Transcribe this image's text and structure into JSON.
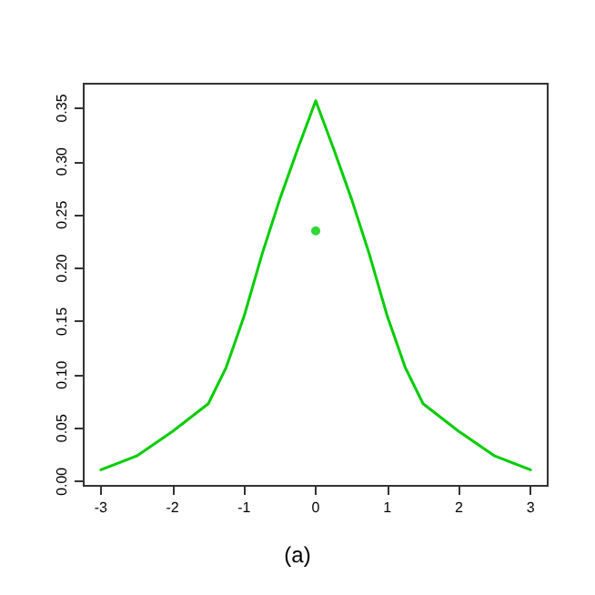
{
  "chart_data": {
    "type": "line",
    "annotations": [
      "(a)"
    ],
    "xlim": [
      -3.24,
      3.24
    ],
    "xticks": [
      -3,
      -2,
      -1,
      0,
      1,
      2,
      3
    ],
    "ylim": [
      -0.004,
      0.373
    ],
    "yticks": [
      {
        "value": 0,
        "label": "0.00"
      },
      0.05,
      {
        "value": 0.1,
        "label": "0.10"
      },
      0.15,
      {
        "value": 0.2,
        "label": "0.20"
      },
      0.25,
      {
        "value": 0.3,
        "label": "0.30"
      },
      0.35
    ],
    "grid": false,
    "marker": "none",
    "line_style": "solid",
    "series": [
      {
        "color": "#00cd00",
        "x": [
          -3,
          -2.5,
          -2,
          -1.5,
          -1.25,
          -1,
          -0.75,
          -0.5,
          -0.25,
          0,
          0.25,
          0.5,
          0.75,
          1,
          1.25,
          1.5,
          2,
          2.5,
          3
        ],
        "values": [
          0.011,
          0.024,
          0.047,
          0.073,
          0.107,
          0.155,
          0.213,
          0.265,
          0.312,
          0.357,
          0.312,
          0.265,
          0.213,
          0.155,
          0.107,
          0.073,
          0.047,
          0.024,
          0.011
        ]
      },
      {
        "type": "scatter",
        "color": "#00cd00",
        "marker": "circle",
        "x": [
          0
        ],
        "values": [
          0.235
        ]
      }
    ]
  }
}
